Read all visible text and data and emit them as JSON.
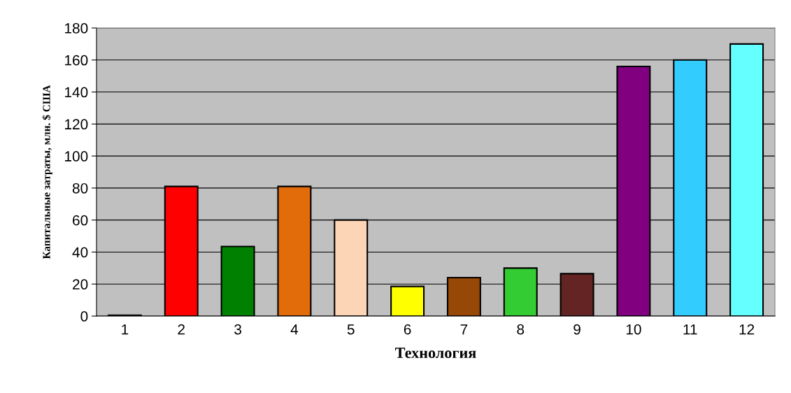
{
  "chart_data": {
    "type": "bar",
    "xlabel": "Технология",
    "ylabel": "Капитальные затраты, млн. $ США",
    "categories": [
      "1",
      "2",
      "3",
      "4",
      "5",
      "6",
      "7",
      "8",
      "9",
      "10",
      "11",
      "12"
    ],
    "values": [
      0.5,
      81,
      43.5,
      81,
      60,
      18.5,
      24,
      30,
      26.5,
      156,
      160,
      170
    ],
    "colors": [
      "#000000",
      "#ff0000",
      "#008000",
      "#e26b0a",
      "#fbd5b5",
      "#ffff00",
      "#974706",
      "#33cc33",
      "#632423",
      "#800080",
      "#33ccff",
      "#66ffff"
    ],
    "ylim": [
      0,
      180
    ],
    "yticks": [
      0,
      20,
      40,
      60,
      80,
      100,
      120,
      140,
      160,
      180
    ],
    "grid": "y",
    "legend": false
  }
}
